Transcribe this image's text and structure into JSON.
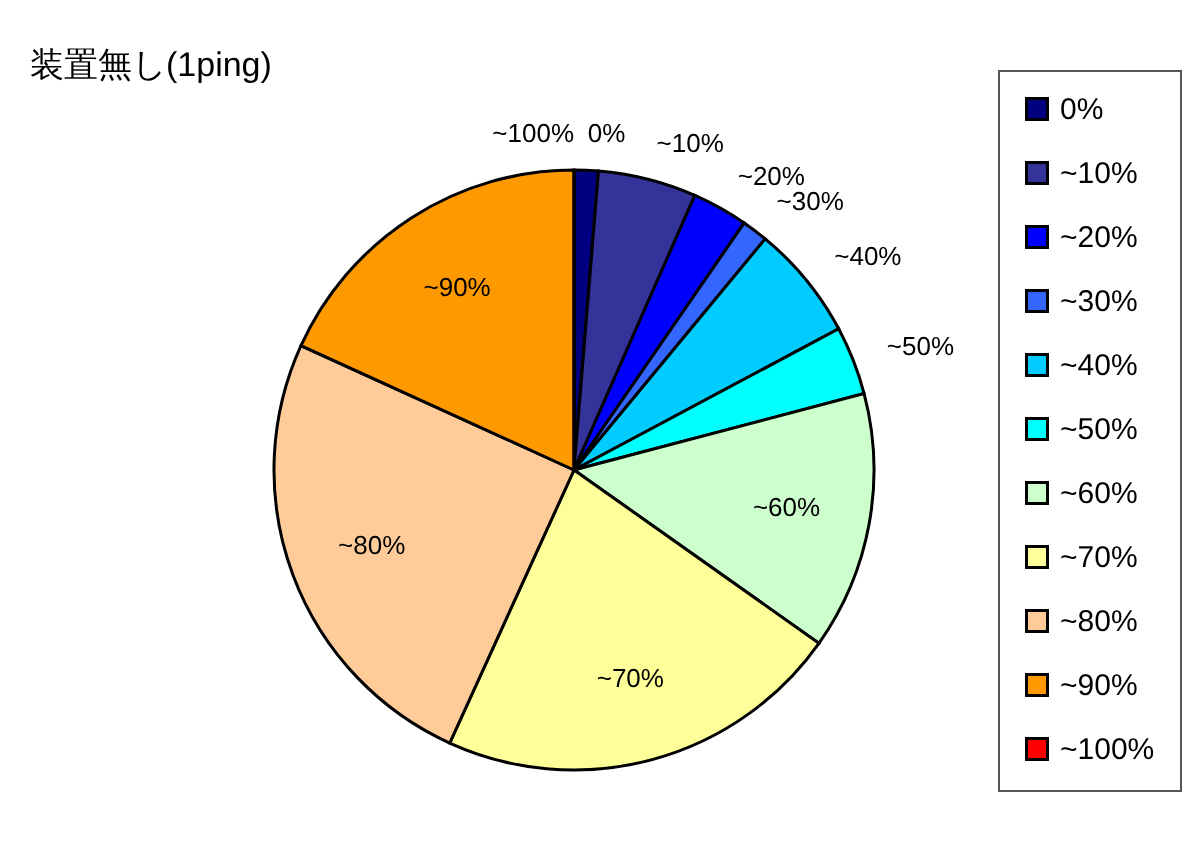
{
  "chart_data": {
    "type": "pie",
    "title": "装置無し(1ping)",
    "categories": [
      "0%",
      "~10%",
      "~20%",
      "~30%",
      "~40%",
      "~50%",
      "~60%",
      "~70%",
      "~80%",
      "~90%",
      "~100%"
    ],
    "values": [
      1.3,
      5.3,
      3,
      1.4,
      6.2,
      3.7,
      13.9,
      22,
      25,
      18.2,
      0
    ],
    "colors": [
      "#000080",
      "#333399",
      "#0000ff",
      "#3366ff",
      "#00ccff",
      "#00ffff",
      "#ccffcc",
      "#ffff99",
      "#ffcc99",
      "#ff9900",
      "#ff0000"
    ],
    "legend": "right"
  }
}
